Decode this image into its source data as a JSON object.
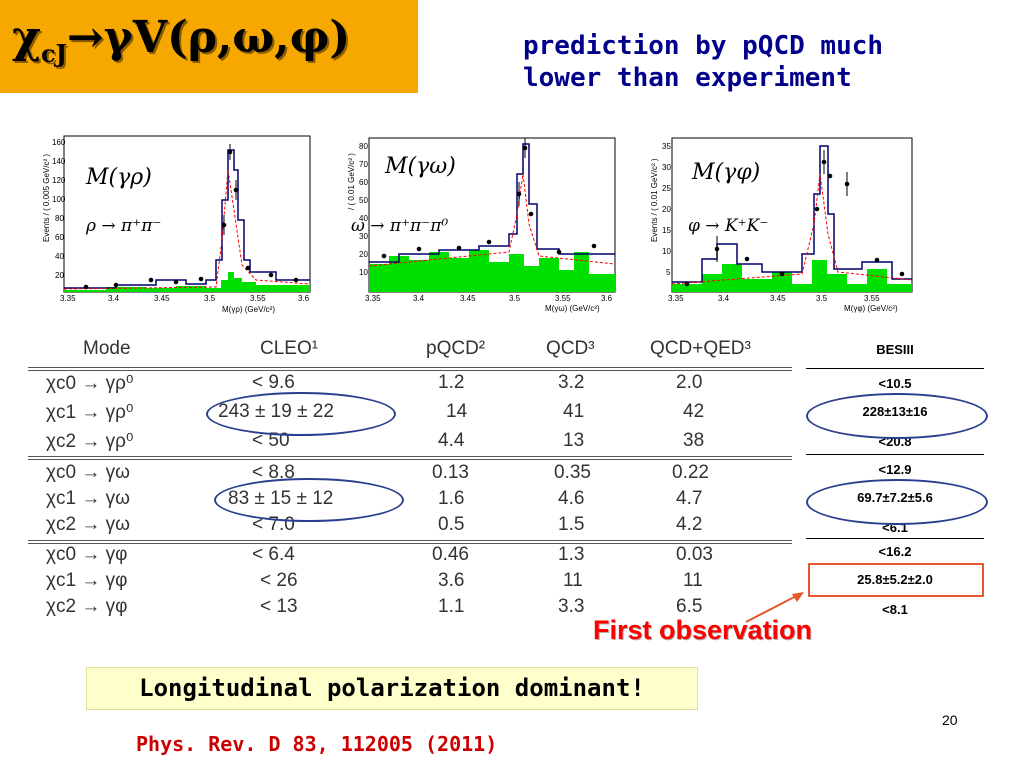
{
  "title": "χcJ→γV(ρ,ω,φ)",
  "title_parts": {
    "chi": "χ",
    "sub": "cJ",
    "rest": "→γV(ρ,ω,φ)"
  },
  "prediction": [
    "prediction by pQCD much",
    "lower than experiment"
  ],
  "plots": [
    {
      "ylabel": "Events / ( 0.005 GeV/c² )",
      "xlabel": "M(γρ) (GeV/c²)",
      "mass_label": "M(γρ)",
      "decay": "ρ → π⁺π⁻",
      "yticks": [
        "20",
        "40",
        "60",
        "80",
        "100",
        "120",
        "140",
        "160"
      ],
      "xticks": [
        "3.35",
        "3.4",
        "3.45",
        "3.5",
        "3.55",
        "3.6"
      ]
    },
    {
      "ylabel": "/ ( 0.01 GeV/c² )",
      "xlabel": "M(γω) (GeV/c²)",
      "mass_label": "M(γω)",
      "decay": "ω → π⁺π⁻π⁰",
      "yticks": [
        "10",
        "20",
        "30",
        "40",
        "50",
        "60",
        "70",
        "80"
      ],
      "xticks": [
        "3.35",
        "3.4",
        "3.45",
        "3.5",
        "3.55",
        "3.6"
      ]
    },
    {
      "ylabel": "Events / ( 0.01 GeV/c² )",
      "xlabel": "M(γφ) (GeV/c²)",
      "mass_label": "M(γφ)",
      "decay": "φ → K⁺K⁻",
      "yticks": [
        "5",
        "10",
        "15",
        "20",
        "25",
        "30",
        "35"
      ],
      "xticks": [
        "3.35",
        "3.4",
        "3.45",
        "3.5",
        "3.55"
      ]
    }
  ],
  "table": {
    "headers": [
      "Mode",
      "CLEO¹",
      "pQCD²",
      "QCD³",
      "QCD+QED³"
    ],
    "rows": [
      [
        "χc0 → γρ⁰",
        "< 9.6",
        "1.2",
        "3.2",
        "2.0"
      ],
      [
        "χc1 → γρ⁰",
        "243 ± 19 ± 22",
        "14",
        "41",
        "42"
      ],
      [
        "χc2 → γρ⁰",
        "< 50",
        "4.4",
        "13",
        "38"
      ],
      [
        "χc0 → γω",
        "< 8.8",
        "0.13",
        "0.35",
        "0.22"
      ],
      [
        "χc1 → γω",
        "83 ± 15 ± 12",
        "1.6",
        "4.6",
        "4.7"
      ],
      [
        "χc2 → γω",
        "< 7.0",
        "0.5",
        "1.5",
        "4.2"
      ],
      [
        "χc0 → γφ",
        "< 6.4",
        "0.46",
        "1.3",
        "0.03"
      ],
      [
        "χc1 → γφ",
        "< 26",
        "3.6",
        "11",
        "11"
      ],
      [
        "χc2 → γφ",
        "< 13",
        "1.1",
        "3.3",
        "6.5"
      ]
    ]
  },
  "besiii": {
    "header": "BESIII",
    "values": [
      "<10.5",
      "228±13±16",
      "<20.8",
      "<12.9",
      "69.7±7.2±5.6",
      "<6.1",
      "<16.2",
      "25.8±5.2±2.0",
      "<8.1"
    ]
  },
  "first_observation": "First observation",
  "conclusion": "Longitudinal polarization dominant!",
  "page_number": "20",
  "reference": "Phys. Rev. D 83, 112005 (2011)",
  "colors": {
    "title_bg": "#f7a800",
    "prediction": "#00008b",
    "highlight": "#ff0000",
    "ellipse": "#2b3f8f",
    "conclusion_bg": "#ffffcc",
    "reference": "#cc0000",
    "fill": "#00e000"
  }
}
